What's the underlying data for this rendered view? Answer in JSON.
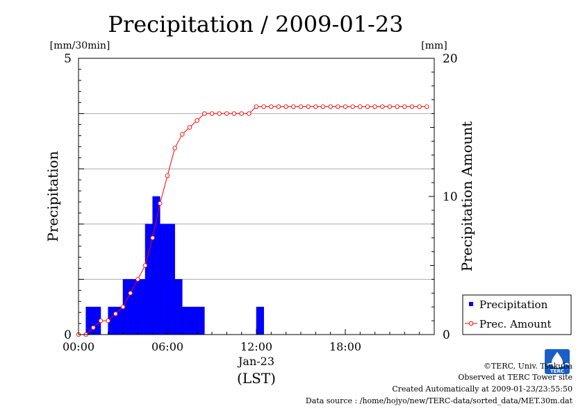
{
  "chart_data": {
    "type": "bar",
    "title": "Precipitation / 2009-01-23",
    "ylabel_left": "Precipitation",
    "ylabel_right": "Precipitation Amount",
    "unit_left": "[mm/30min]",
    "unit_right": "[mm]",
    "xlabel_date": "Jan-23",
    "xlabel_tz": "(LST)",
    "ylim_left": [
      0,
      5
    ],
    "ylim_right": [
      0,
      20
    ],
    "yticks_left": [
      "0",
      "5"
    ],
    "yticks_right": [
      "0",
      "10",
      "20"
    ],
    "xticks": [
      "00:00",
      "06:00",
      "12:00",
      "18:00"
    ],
    "xlim_hours": [
      0,
      24
    ],
    "grid": "horizontal",
    "legend_position": "lower-right",
    "legend": [
      "Precipitation",
      "Prec. Amount"
    ],
    "x_hours": [
      0,
      0.5,
      1,
      1.5,
      2,
      2.5,
      3,
      3.5,
      4,
      4.5,
      5,
      5.5,
      6,
      6.5,
      7,
      7.5,
      8,
      8.5,
      9,
      9.5,
      10,
      10.5,
      11,
      11.5,
      12,
      12.5,
      13,
      13.5,
      14,
      14.5,
      15,
      15.5,
      16,
      16.5,
      17,
      17.5,
      18,
      18.5,
      19,
      19.5,
      20,
      20.5,
      21,
      21.5,
      22,
      22.5,
      23,
      23.5
    ],
    "series": [
      {
        "name": "Precipitation",
        "type": "bar",
        "axis": "left",
        "color": "#0000ff",
        "values": [
          0,
          0.5,
          0.5,
          0,
          0.5,
          0.5,
          1,
          1,
          1,
          2,
          2.5,
          2,
          2,
          1,
          0.5,
          0.5,
          0.5,
          0,
          0,
          0,
          0,
          0,
          0,
          0,
          0.5,
          0,
          0,
          0,
          0,
          0,
          0,
          0,
          0,
          0,
          0,
          0,
          0,
          0,
          0,
          0,
          0,
          0,
          0,
          0,
          0,
          0,
          0,
          0
        ]
      },
      {
        "name": "Prec. Amount",
        "type": "line",
        "axis": "right",
        "color": "#ff0000",
        "values": [
          0,
          0,
          0.5,
          1,
          1,
          1.5,
          2,
          3,
          4,
          5,
          7,
          9.5,
          11.5,
          13.5,
          14.5,
          15,
          15.5,
          16,
          16,
          16,
          16,
          16,
          16,
          16,
          16.5,
          16.5,
          16.5,
          16.5,
          16.5,
          16.5,
          16.5,
          16.5,
          16.5,
          16.5,
          16.5,
          16.5,
          16.5,
          16.5,
          16.5,
          16.5,
          16.5,
          16.5,
          16.5,
          16.5,
          16.5,
          16.5,
          16.5,
          16.5
        ]
      }
    ]
  },
  "footer": {
    "copyright": "©TERC, Univ. Tsukuba",
    "observed": "Observed at TERC Tower site",
    "created": "Created Automatically at 2009-01-23/23:55:50",
    "source": "Data source : /home/hojyo/new/TERC-data/sorted_data/MET.30m.dat"
  },
  "logo": {
    "label": "TERC",
    "color": "#1a5fc8"
  }
}
